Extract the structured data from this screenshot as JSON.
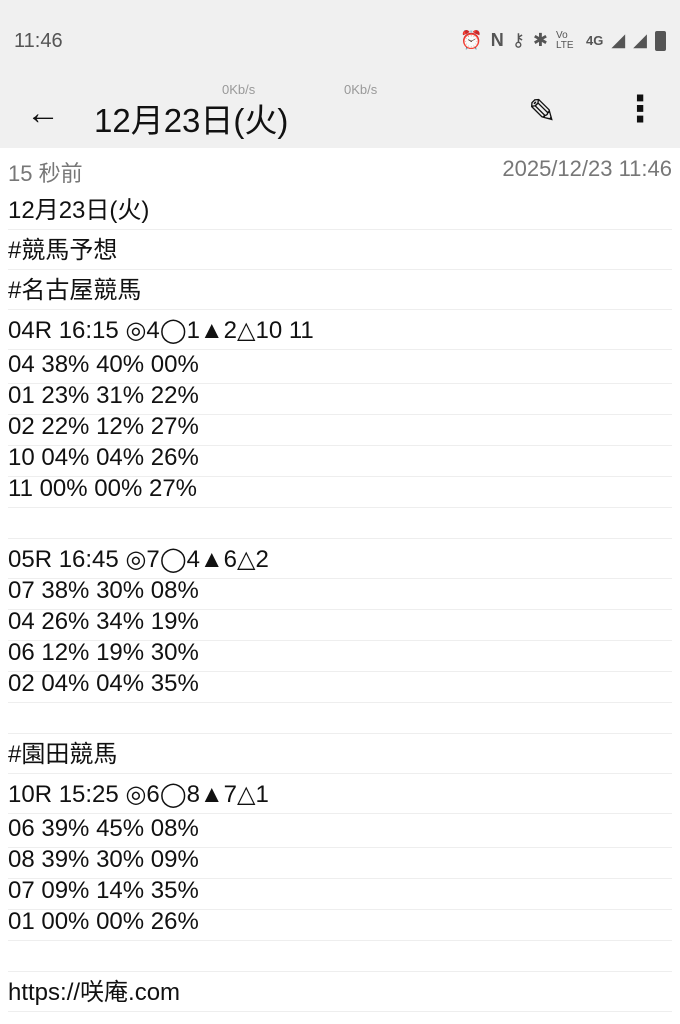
{
  "status": {
    "time": "11:46",
    "icons": [
      "alarm-icon",
      "nfc-icon",
      "vpn-key-icon",
      "bluetooth-icon",
      "volte-icon",
      "4g-icon",
      "signal-icon",
      "signal-icon",
      "battery-icon"
    ],
    "volte": "Vo LTE",
    "net": "4G"
  },
  "appbar": {
    "title": "12月23日(火)",
    "kbs1": "0Kb/s",
    "kbs2": "0Kb/s"
  },
  "meta": {
    "ago": "15 秒前",
    "date": "2025/12/23 11:46"
  },
  "lines": [
    {
      "t": "12月23日(火)",
      "h": "h40"
    },
    {
      "t": "#競馬予想",
      "h": "h40"
    },
    {
      "t": "#名古屋競馬",
      "h": "h40"
    },
    {
      "t": "04R 16:15 ◎4◯1▲2△10 11",
      "h": "h40"
    },
    {
      "t": "04 38% 40% 00%",
      "h": "h34"
    },
    {
      "t": "01 23% 31% 22%",
      "h": "h31"
    },
    {
      "t": "02 22% 12% 27%",
      "h": "h31"
    },
    {
      "t": "10 04% 04% 26%",
      "h": "h31"
    },
    {
      "t": "11 00% 00% 27%",
      "h": "h31"
    },
    {
      "t": "",
      "h": "h31"
    },
    {
      "t": "05R 16:45 ◎7◯4▲6△2",
      "h": "h40"
    },
    {
      "t": "07 38% 30% 08%",
      "h": "h31"
    },
    {
      "t": "04 26% 34% 19%",
      "h": "h31"
    },
    {
      "t": "06 12% 19% 30%",
      "h": "h31"
    },
    {
      "t": "02 04% 04% 35%",
      "h": "h31"
    },
    {
      "t": "",
      "h": "h31"
    },
    {
      "t": "#園田競馬",
      "h": "h40"
    },
    {
      "t": "10R 15:25 ◎6◯8▲7△1",
      "h": "h40"
    },
    {
      "t": "06 39% 45% 08%",
      "h": "h34"
    },
    {
      "t": "08 39% 30% 09%",
      "h": "h31"
    },
    {
      "t": "07 09% 14% 35%",
      "h": "h31"
    },
    {
      "t": "01 00% 00% 26%",
      "h": "h31"
    },
    {
      "t": "",
      "h": "h31"
    },
    {
      "t": "https://咲庵.com",
      "h": "h40"
    }
  ]
}
